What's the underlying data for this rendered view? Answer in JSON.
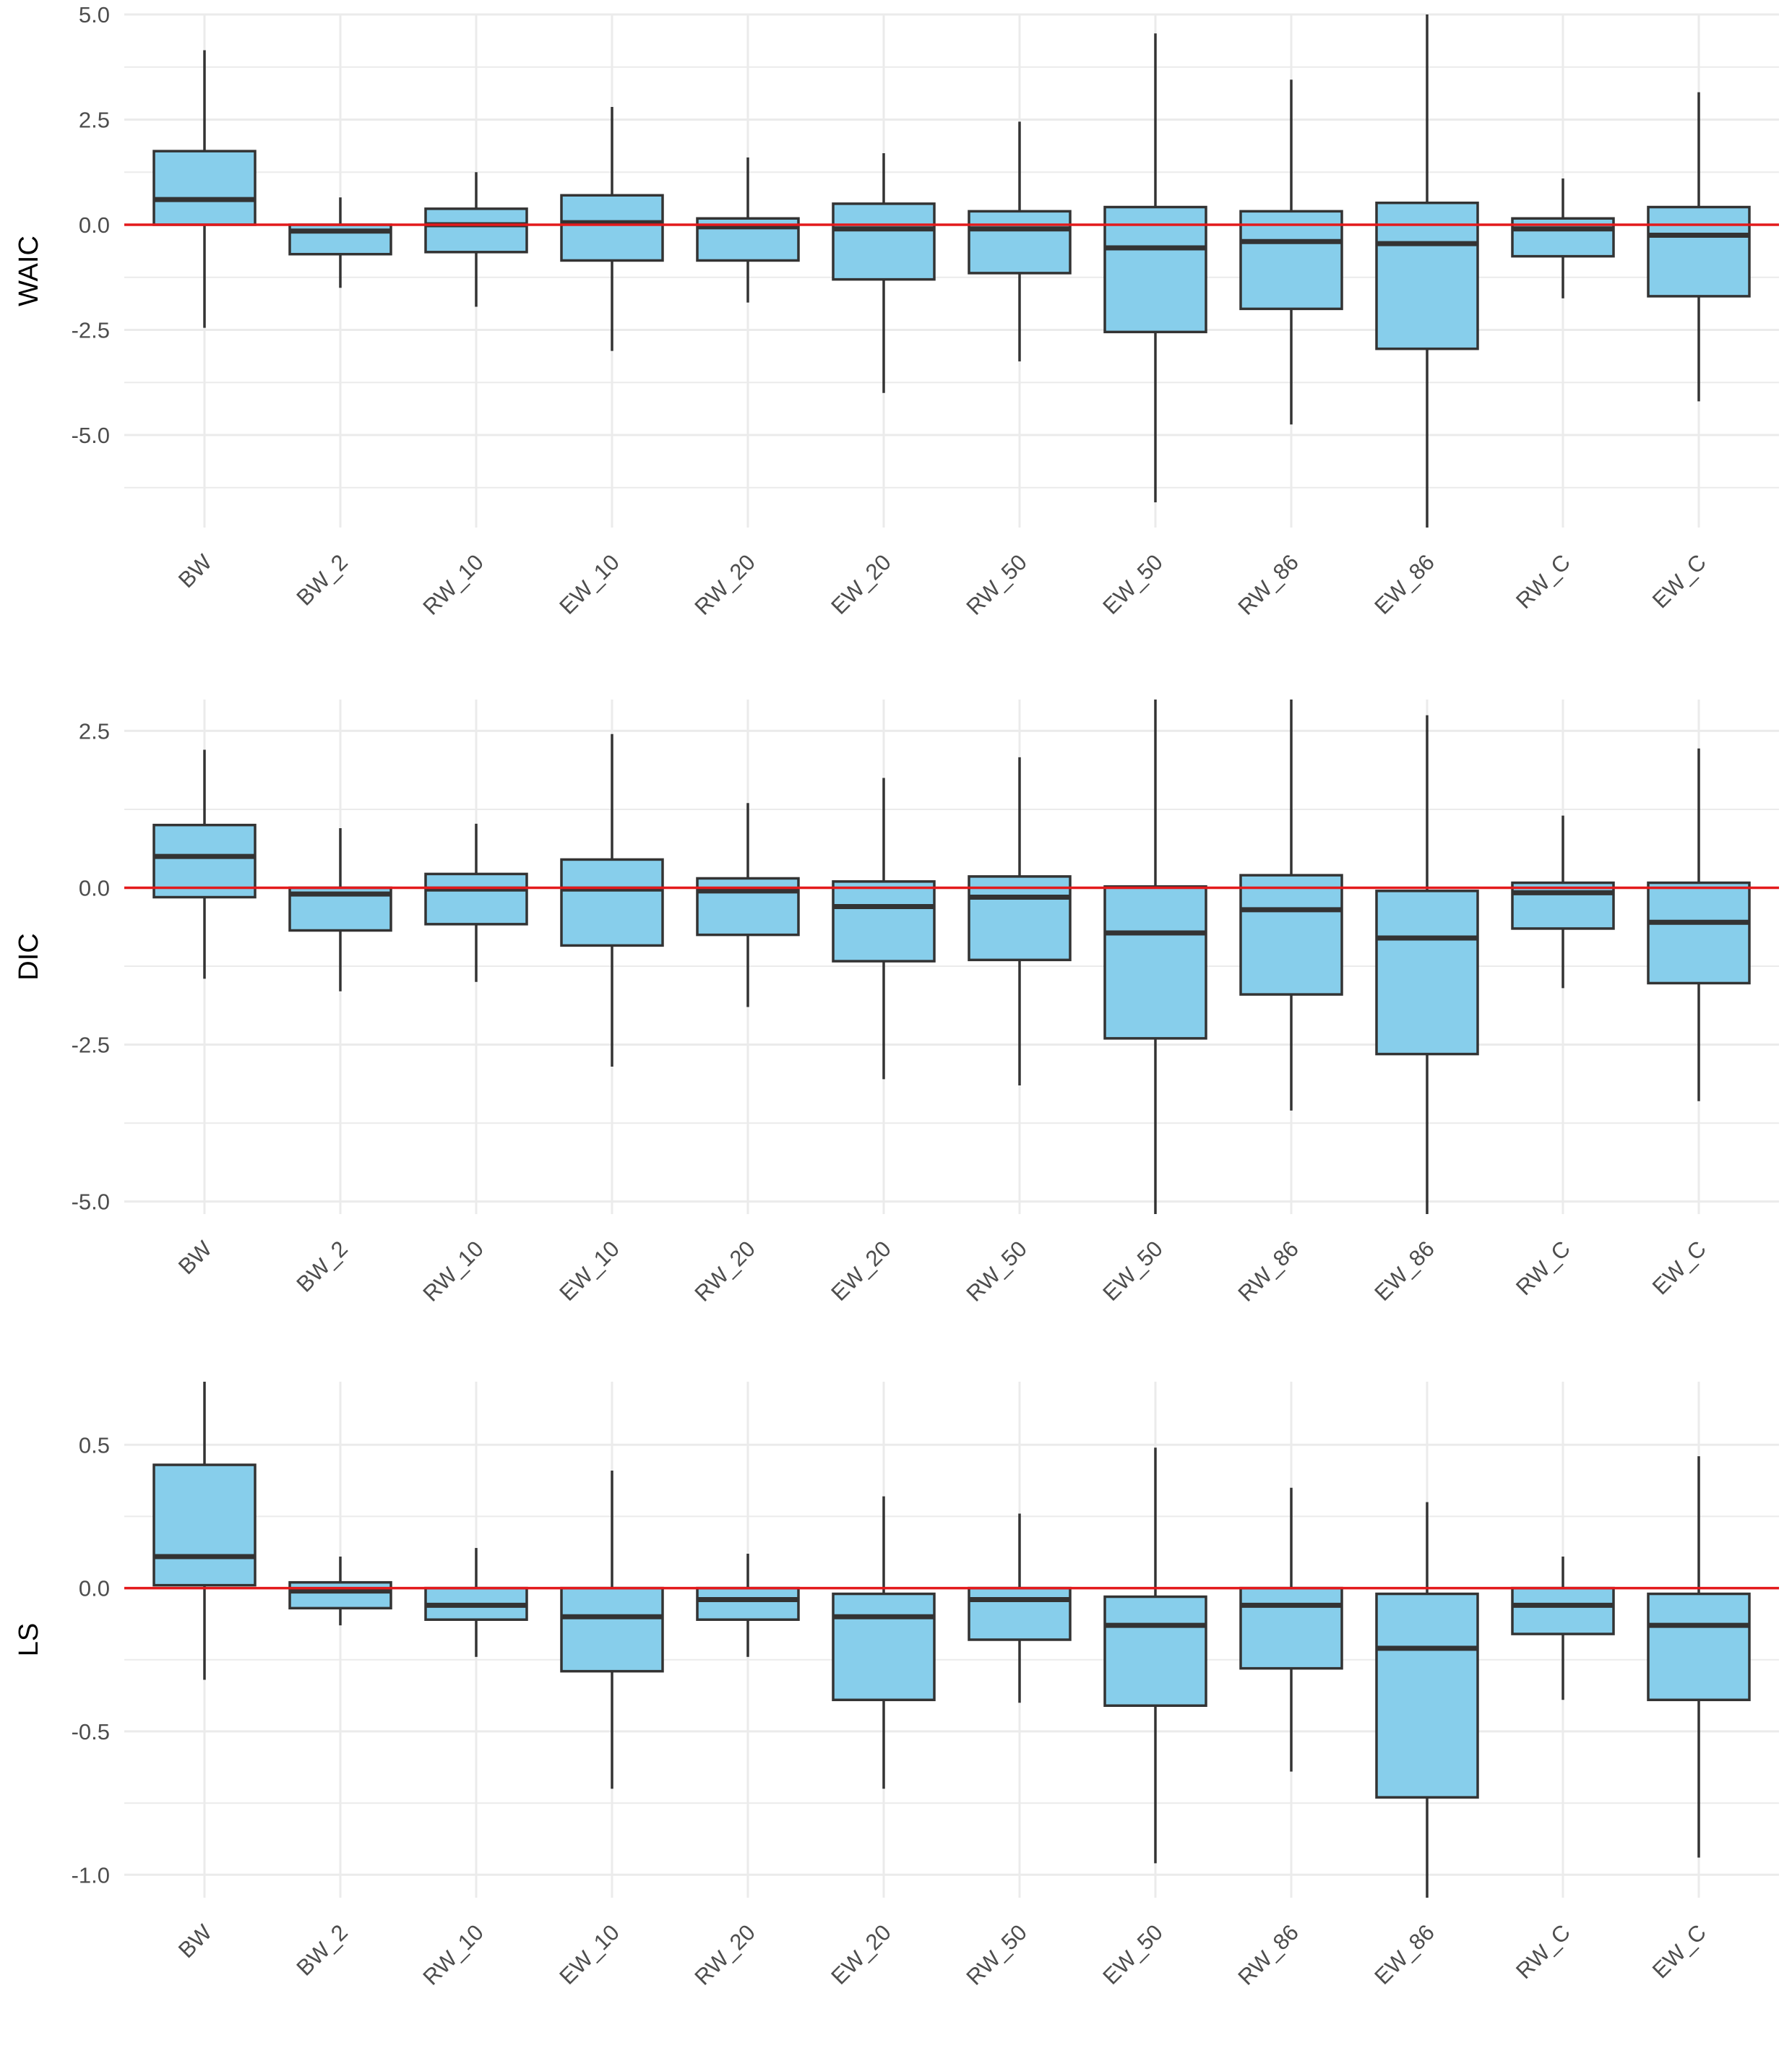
{
  "colors": {
    "box_fill": "#87CEEB",
    "box_stroke": "#333333",
    "reference_line": "#e31a1c",
    "grid": "#ebebeb",
    "tick_text": "#4d4d4d",
    "background": "#ffffff"
  },
  "chart_data": [
    {
      "type": "boxplot",
      "ylabel": "WAIC",
      "ylim": [
        -7.2,
        5.0
      ],
      "yticks": [
        5.0,
        2.5,
        0.0,
        -2.5,
        -5.0
      ],
      "ytick_labels": [
        "5.0",
        "2.5",
        "0.0",
        "-2.5",
        "-5.0"
      ],
      "reference_line": 0,
      "grid": true,
      "categories": [
        "BW",
        "BW_2",
        "RW_10",
        "EW_10",
        "RW_20",
        "EW_20",
        "RW_50",
        "EW_50",
        "RW_86",
        "EW_86",
        "RW_C",
        "EW_C"
      ],
      "boxes": [
        {
          "lower_whisker": -2.45,
          "q1": 0.0,
          "median": 0.6,
          "q3": 1.75,
          "upper_whisker": 4.15
        },
        {
          "lower_whisker": -1.5,
          "q1": -0.7,
          "median": -0.15,
          "q3": 0.0,
          "upper_whisker": 0.65
        },
        {
          "lower_whisker": -1.95,
          "q1": -0.65,
          "median": 0.0,
          "q3": 0.38,
          "upper_whisker": 1.25
        },
        {
          "lower_whisker": -3.0,
          "q1": -0.85,
          "median": 0.05,
          "q3": 0.7,
          "upper_whisker": 2.8
        },
        {
          "lower_whisker": -1.85,
          "q1": -0.85,
          "median": -0.05,
          "q3": 0.15,
          "upper_whisker": 1.6
        },
        {
          "lower_whisker": -4.0,
          "q1": -1.3,
          "median": -0.1,
          "q3": 0.5,
          "upper_whisker": 1.7
        },
        {
          "lower_whisker": -3.25,
          "q1": -1.15,
          "median": -0.1,
          "q3": 0.32,
          "upper_whisker": 2.45
        },
        {
          "lower_whisker": -6.6,
          "q1": -2.55,
          "median": -0.55,
          "q3": 0.42,
          "upper_whisker": 4.55
        },
        {
          "lower_whisker": -4.75,
          "q1": -2.0,
          "median": -0.4,
          "q3": 0.32,
          "upper_whisker": 3.45
        },
        {
          "lower_whisker": -7.2,
          "q1": -2.95,
          "median": -0.45,
          "q3": 0.52,
          "upper_whisker": 5.0
        },
        {
          "lower_whisker": -1.75,
          "q1": -0.75,
          "median": -0.1,
          "q3": 0.15,
          "upper_whisker": 1.1
        },
        {
          "lower_whisker": -4.2,
          "q1": -1.7,
          "median": -0.25,
          "q3": 0.42,
          "upper_whisker": 3.15
        }
      ]
    },
    {
      "type": "boxplot",
      "ylabel": "DIC",
      "ylim": [
        -5.2,
        3.0
      ],
      "yticks": [
        2.5,
        0.0,
        -2.5,
        -5.0
      ],
      "ytick_labels": [
        "2.5",
        "0.0",
        "-2.5",
        "-5.0"
      ],
      "reference_line": 0,
      "grid": true,
      "categories": [
        "BW",
        "BW_2",
        "RW_10",
        "EW_10",
        "RW_20",
        "EW_20",
        "RW_50",
        "EW_50",
        "RW_86",
        "EW_86",
        "RW_C",
        "EW_C"
      ],
      "boxes": [
        {
          "lower_whisker": -1.45,
          "q1": -0.15,
          "median": 0.5,
          "q3": 1.0,
          "upper_whisker": 2.2
        },
        {
          "lower_whisker": -1.65,
          "q1": -0.68,
          "median": -0.1,
          "q3": 0.0,
          "upper_whisker": 0.95
        },
        {
          "lower_whisker": -1.5,
          "q1": -0.58,
          "median": -0.02,
          "q3": 0.22,
          "upper_whisker": 1.02
        },
        {
          "lower_whisker": -2.85,
          "q1": -0.92,
          "median": -0.02,
          "q3": 0.45,
          "upper_whisker": 2.45
        },
        {
          "lower_whisker": -1.9,
          "q1": -0.75,
          "median": -0.05,
          "q3": 0.15,
          "upper_whisker": 1.35
        },
        {
          "lower_whisker": -3.05,
          "q1": -1.17,
          "median": -0.3,
          "q3": 0.1,
          "upper_whisker": 1.75
        },
        {
          "lower_whisker": -3.15,
          "q1": -1.15,
          "median": -0.15,
          "q3": 0.18,
          "upper_whisker": 2.08
        },
        {
          "lower_whisker": -5.2,
          "q1": -2.4,
          "median": -0.72,
          "q3": 0.02,
          "upper_whisker": 3.0
        },
        {
          "lower_whisker": -3.55,
          "q1": -1.7,
          "median": -0.35,
          "q3": 0.2,
          "upper_whisker": 3.0
        },
        {
          "lower_whisker": -5.2,
          "q1": -2.65,
          "median": -0.8,
          "q3": -0.05,
          "upper_whisker": 2.75
        },
        {
          "lower_whisker": -1.6,
          "q1": -0.65,
          "median": -0.08,
          "q3": 0.08,
          "upper_whisker": 1.15
        },
        {
          "lower_whisker": -3.4,
          "q1": -1.52,
          "median": -0.55,
          "q3": 0.08,
          "upper_whisker": 2.22
        }
      ]
    },
    {
      "type": "boxplot",
      "ylabel": "LS",
      "ylim": [
        -1.08,
        0.72
      ],
      "yticks": [
        0.5,
        0.0,
        -0.5,
        -1.0
      ],
      "ytick_labels": [
        "0.5",
        "0.0",
        "-0.5",
        "-1.0"
      ],
      "reference_line": 0,
      "grid": true,
      "categories": [
        "BW",
        "BW_2",
        "RW_10",
        "EW_10",
        "RW_20",
        "EW_20",
        "RW_50",
        "EW_50",
        "RW_86",
        "EW_86",
        "RW_C",
        "EW_C"
      ],
      "boxes": [
        {
          "lower_whisker": -0.32,
          "q1": 0.01,
          "median": 0.11,
          "q3": 0.43,
          "upper_whisker": 0.72
        },
        {
          "lower_whisker": -0.13,
          "q1": -0.07,
          "median": -0.01,
          "q3": 0.02,
          "upper_whisker": 0.11
        },
        {
          "lower_whisker": -0.24,
          "q1": -0.11,
          "median": -0.06,
          "q3": 0.0,
          "upper_whisker": 0.14
        },
        {
          "lower_whisker": -0.7,
          "q1": -0.29,
          "median": -0.1,
          "q3": 0.0,
          "upper_whisker": 0.41
        },
        {
          "lower_whisker": -0.24,
          "q1": -0.11,
          "median": -0.04,
          "q3": 0.0,
          "upper_whisker": 0.12
        },
        {
          "lower_whisker": -0.7,
          "q1": -0.39,
          "median": -0.1,
          "q3": -0.02,
          "upper_whisker": 0.32
        },
        {
          "lower_whisker": -0.4,
          "q1": -0.18,
          "median": -0.04,
          "q3": 0.0,
          "upper_whisker": 0.26
        },
        {
          "lower_whisker": -0.96,
          "q1": -0.41,
          "median": -0.13,
          "q3": -0.03,
          "upper_whisker": 0.49
        },
        {
          "lower_whisker": -0.64,
          "q1": -0.28,
          "median": -0.06,
          "q3": 0.0,
          "upper_whisker": 0.35
        },
        {
          "lower_whisker": -1.08,
          "q1": -0.73,
          "median": -0.21,
          "q3": -0.02,
          "upper_whisker": 0.3
        },
        {
          "lower_whisker": -0.39,
          "q1": -0.16,
          "median": -0.06,
          "q3": 0.0,
          "upper_whisker": 0.11
        },
        {
          "lower_whisker": -0.94,
          "q1": -0.39,
          "median": -0.13,
          "q3": -0.02,
          "upper_whisker": 0.46
        }
      ]
    }
  ]
}
